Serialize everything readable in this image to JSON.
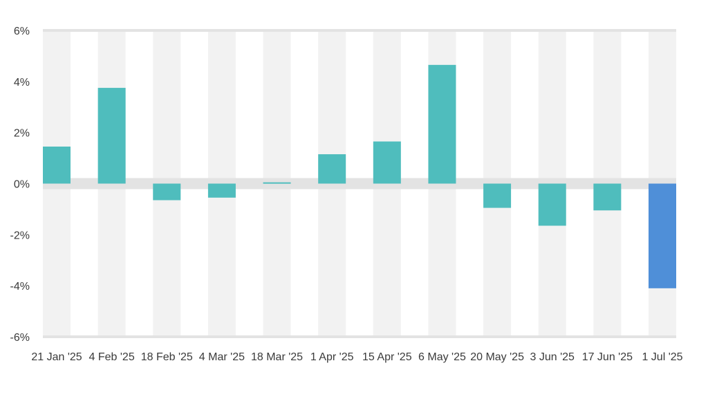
{
  "chart_data": {
    "type": "bar",
    "title": "",
    "xlabel": "",
    "ylabel": "",
    "categories": [
      "21 Jan '25",
      "4 Feb '25",
      "18 Feb '25",
      "4 Mar '25",
      "18 Mar '25",
      "1 Apr '25",
      "15 Apr '25",
      "6 May '25",
      "20 May '25",
      "3 Jun '25",
      "17 Jun '25",
      "1 Jul '25"
    ],
    "values": [
      1.45,
      3.75,
      -0.65,
      -0.55,
      0.05,
      1.15,
      1.65,
      4.65,
      -0.95,
      -1.65,
      -1.05,
      -4.1
    ],
    "ylim": [
      -6,
      6
    ],
    "yticks": [
      -6,
      -4,
      -2,
      0,
      2,
      4,
      6
    ],
    "ytick_labels": [
      "-6%",
      "-4%",
      "-2%",
      "0%",
      "2%",
      "4%",
      "6%"
    ],
    "highlight_index": 11,
    "colors": {
      "bar": "#4fbdbd",
      "highlight": "#4f8fd8",
      "band": "#f2f2f2",
      "gridline": "#e3e3e3",
      "zero_band": "#e3e3e3",
      "text": "#3a3a3a"
    },
    "grid": true,
    "legend": "none"
  }
}
